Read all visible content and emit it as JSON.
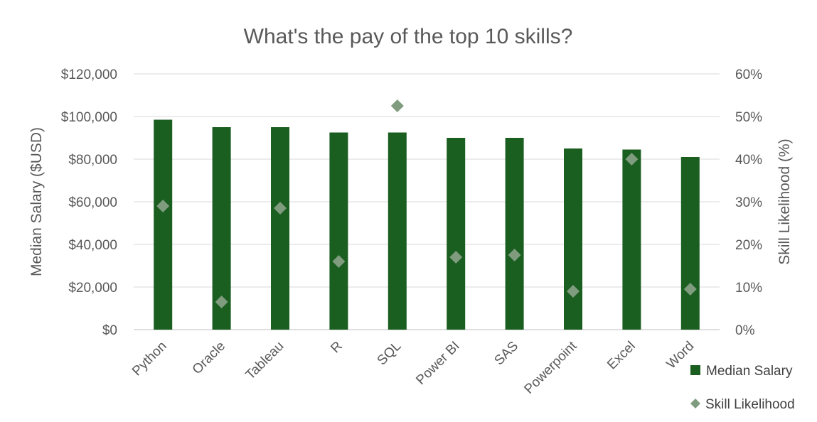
{
  "chart_data": {
    "type": "bar",
    "title": "What's the pay of the top 10 skills?",
    "categories": [
      "Python",
      "Oracle",
      "Tableau",
      "R",
      "SQL",
      "Power BI",
      "SAS",
      "Powerpoint",
      "Excel",
      "Word"
    ],
    "series": [
      {
        "name": "Median Salary",
        "type": "bar",
        "axis": "left",
        "color": "#1a5e20",
        "values": [
          98500,
          95000,
          95000,
          92500,
          92500,
          90000,
          90000,
          85000,
          84500,
          81000
        ]
      },
      {
        "name": "Skill Likelihood",
        "type": "scatter",
        "marker": "diamond",
        "axis": "right",
        "color": "#7f9c7f",
        "values": [
          0.29,
          0.065,
          0.285,
          0.16,
          0.525,
          0.17,
          0.175,
          0.09,
          0.4,
          0.095
        ]
      }
    ],
    "ylabel": "Median Salary ($USD)",
    "ylim": [
      0,
      120000
    ],
    "yticks": [
      "$0",
      "$20,000",
      "$40,000",
      "$60,000",
      "$80,000",
      "$100,000",
      "$120,000"
    ],
    "y2label": "Skill Likelihood (%)",
    "y2lim": [
      0,
      0.6
    ],
    "y2ticks": [
      "0%",
      "10%",
      "20%",
      "30%",
      "40%",
      "50%",
      "60%"
    ],
    "grid": true,
    "legend_position": "bottom-right"
  }
}
